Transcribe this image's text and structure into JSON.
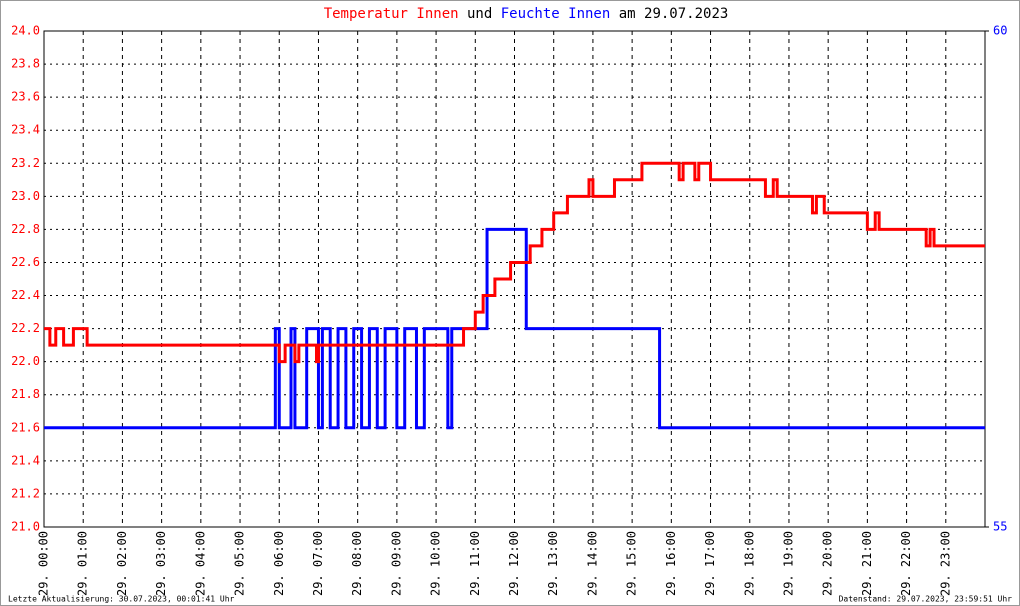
{
  "chart_data": {
    "type": "line",
    "title_date": "am 29.07.2023",
    "title_joiner": "und",
    "footer_left": "Letzte Aktualisierung: 30.07.2023, 00:01:41 Uhr",
    "footer_right": "Datenstand: 29.07.2023, 23:59:51 Uhr",
    "xlim": [
      0,
      24
    ],
    "xticks": [
      {
        "value": 0,
        "label": "29. 00:00"
      },
      {
        "value": 1,
        "label": "29. 01:00"
      },
      {
        "value": 2,
        "label": "29. 02:00"
      },
      {
        "value": 3,
        "label": "29. 03:00"
      },
      {
        "value": 4,
        "label": "29. 04:00"
      },
      {
        "value": 5,
        "label": "29. 05:00"
      },
      {
        "value": 6,
        "label": "29. 06:00"
      },
      {
        "value": 7,
        "label": "29. 07:00"
      },
      {
        "value": 8,
        "label": "29. 08:00"
      },
      {
        "value": 9,
        "label": "29. 09:00"
      },
      {
        "value": 10,
        "label": "29. 10:00"
      },
      {
        "value": 11,
        "label": "29. 11:00"
      },
      {
        "value": 12,
        "label": "29. 12:00"
      },
      {
        "value": 13,
        "label": "29. 13:00"
      },
      {
        "value": 14,
        "label": "29. 14:00"
      },
      {
        "value": 15,
        "label": "29. 15:00"
      },
      {
        "value": 16,
        "label": "29. 16:00"
      },
      {
        "value": 17,
        "label": "29. 17:00"
      },
      {
        "value": 18,
        "label": "29. 18:00"
      },
      {
        "value": 19,
        "label": "29. 19:00"
      },
      {
        "value": 20,
        "label": "29. 20:00"
      },
      {
        "value": 21,
        "label": "29. 21:00"
      },
      {
        "value": 22,
        "label": "29. 22:00"
      },
      {
        "value": 23,
        "label": "29. 23:00"
      }
    ],
    "ylim": [
      21,
      24
    ],
    "yticks": [
      {
        "value": 21,
        "label": "21.0"
      },
      21.2,
      21.4,
      21.6,
      21.8,
      {
        "value": 22,
        "label": "22.0"
      },
      22.2,
      22.4,
      22.6,
      22.8,
      {
        "value": 23,
        "label": "23.0"
      },
      23.2,
      23.4,
      23.6,
      23.8,
      {
        "value": 24,
        "label": "24.0"
      }
    ],
    "y2lim": [
      55,
      60
    ],
    "y2ticks": [
      55,
      60
    ],
    "grid": true,
    "series": [
      {
        "name": "Temperatur Innen",
        "color": "#ff0000",
        "x": [
          0,
          0.15,
          0.15,
          0.3,
          0.3,
          0.5,
          0.5,
          0.75,
          0.75,
          1.1,
          1.1,
          6.0,
          6.0,
          6.15,
          6.15,
          6.4,
          6.4,
          6.5,
          6.5,
          6.95,
          6.95,
          7.0,
          7.0,
          10.7,
          10.7,
          11.0,
          11.0,
          11.2,
          11.2,
          11.5,
          11.5,
          11.9,
          11.9,
          12.4,
          12.4,
          12.7,
          12.7,
          13.0,
          13.0,
          13.35,
          13.35,
          13.9,
          13.9,
          14.0,
          14.0,
          14.55,
          14.55,
          15.25,
          15.25,
          16.2,
          16.2,
          16.3,
          16.3,
          16.6,
          16.6,
          16.7,
          16.7,
          17.0,
          17.0,
          18.4,
          18.4,
          18.6,
          18.6,
          18.7,
          18.7,
          19.6,
          19.6,
          19.7,
          19.7,
          19.9,
          19.9,
          21.0,
          21.0,
          21.2,
          21.2,
          21.3,
          21.3,
          22.5,
          22.5,
          22.6,
          22.6,
          22.7,
          22.7,
          24
        ],
        "values": [
          22.2,
          22.2,
          22.1,
          22.1,
          22.2,
          22.2,
          22.1,
          22.1,
          22.2,
          22.2,
          22.1,
          22.1,
          22.0,
          22.0,
          22.1,
          22.1,
          22.0,
          22.0,
          22.1,
          22.1,
          22.0,
          22.0,
          22.1,
          22.1,
          22.2,
          22.2,
          22.3,
          22.3,
          22.4,
          22.4,
          22.5,
          22.5,
          22.6,
          22.6,
          22.7,
          22.7,
          22.8,
          22.8,
          22.9,
          22.9,
          23.0,
          23.0,
          23.1,
          23.1,
          23.0,
          23.0,
          23.1,
          23.1,
          23.2,
          23.2,
          23.1,
          23.1,
          23.2,
          23.2,
          23.1,
          23.1,
          23.2,
          23.2,
          23.1,
          23.1,
          23.0,
          23.0,
          23.1,
          23.1,
          23.0,
          23.0,
          22.9,
          22.9,
          23.0,
          23.0,
          22.9,
          22.9,
          22.8,
          22.8,
          22.9,
          22.9,
          22.8,
          22.8,
          22.7,
          22.7,
          22.8,
          22.8,
          22.7,
          22.7
        ]
      },
      {
        "name": "Feuchte Innen",
        "color": "#0000ff",
        "axis": "y2",
        "x": [
          0,
          5.9,
          5.9,
          6.0,
          6.0,
          6.3,
          6.3,
          6.4,
          6.4,
          6.7,
          6.7,
          7.0,
          7.0,
          7.1,
          7.1,
          7.3,
          7.3,
          7.5,
          7.5,
          7.7,
          7.7,
          7.9,
          7.9,
          8.1,
          8.1,
          8.3,
          8.3,
          8.5,
          8.5,
          8.7,
          8.7,
          9.0,
          9.0,
          9.2,
          9.2,
          9.5,
          9.5,
          9.7,
          9.7,
          10.3,
          10.3,
          10.4,
          10.4,
          11.3,
          11.3,
          12.3,
          12.3,
          15.7,
          15.7,
          24
        ],
        "values": [
          56,
          56,
          57,
          57,
          56,
          56,
          57,
          57,
          56,
          56,
          57,
          57,
          56,
          56,
          57,
          57,
          56,
          56,
          57,
          57,
          56,
          56,
          57,
          57,
          56,
          56,
          57,
          57,
          56,
          56,
          57,
          57,
          56,
          56,
          57,
          57,
          56,
          56,
          57,
          57,
          56,
          56,
          57,
          57,
          58,
          58,
          57,
          57,
          56,
          56
        ]
      }
    ]
  }
}
